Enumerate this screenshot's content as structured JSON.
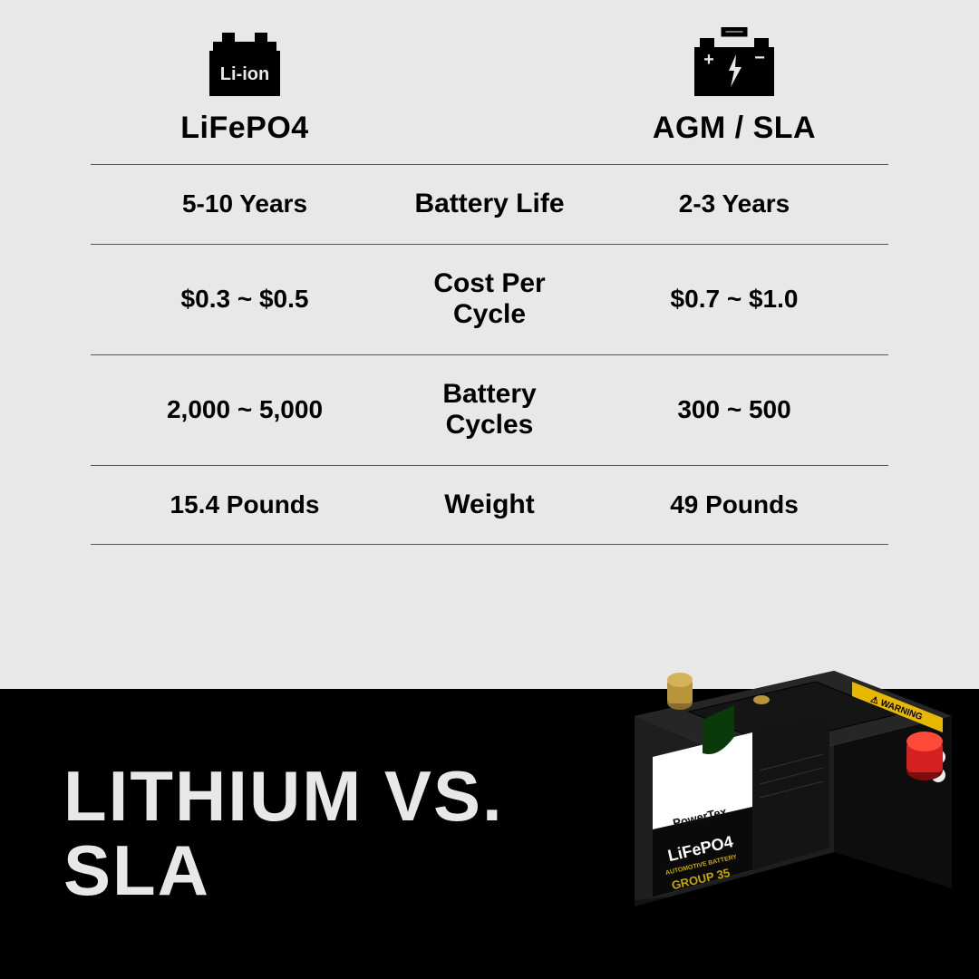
{
  "type": "infographic",
  "background_color_top": "#e8e8e8",
  "background_color_bottom": "#000000",
  "divider_color": "#555555",
  "text_color": "#000000",
  "bottom_text_color": "#e8e8e8",
  "header_fontsize": 34,
  "cell_fontsize": 28,
  "mid_fontsize": 30,
  "title_fontsize": 78,
  "columns": {
    "left": {
      "label": "LiFePO4",
      "icon_text": "Li-ion"
    },
    "right": {
      "label": "AGM / SLA"
    }
  },
  "rows": [
    {
      "left": "5-10 Years",
      "mid": "Battery Life",
      "right": "2-3 Years"
    },
    {
      "left": "$0.3 ~ $0.5",
      "mid": "Cost Per Cycle",
      "right": "$0.7 ~ $1.0"
    },
    {
      "left": "2,000 ~ 5,000",
      "mid": "Battery Cycles",
      "right": "300 ~ 500"
    },
    {
      "left": "15.4 Pounds",
      "mid": "Weight",
      "right": "49 Pounds"
    }
  ],
  "title_line1": "LITHIUM VS.",
  "title_line2": "SLA",
  "product": {
    "brand": "PowerTex",
    "chemistry": "LiFePO4",
    "subtitle": "AUTOMOTIVE BATTERY",
    "group": "GROUP 35",
    "case_color": "#1a1a1a",
    "label_bg": "#ffffff",
    "label_accent": "#c6a800",
    "warning_label": "WARNING",
    "terminal_pos_color": "#d42020",
    "terminal_neg_color": "#b8943a"
  }
}
